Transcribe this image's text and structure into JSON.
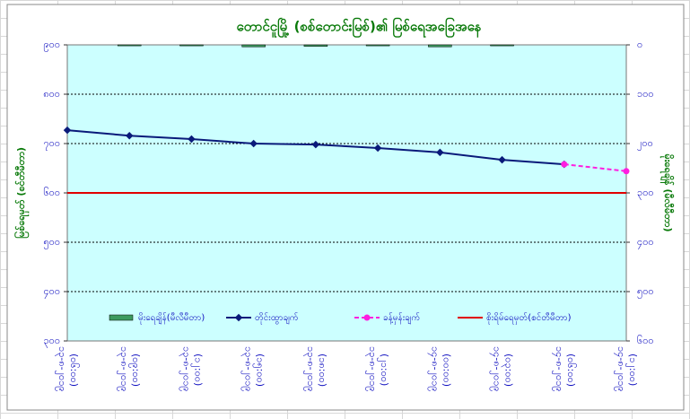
{
  "chart_data": {
    "type": "line",
    "title": "တောင်ငူမြို့ (စစ်တောင်းမြစ်)၏ မြစ်ရေအခြေအနေ",
    "y_label": "မြစ်ရေမှတ် (စင်တီမီတာ)",
    "y2_label": "မိုးရေချိန် (မီလီမီတာ)",
    "categories": [
      "၁၃-၈-၂၀၁၉",
      "၁၃-၈-၂၀၁၉",
      "၁၃-၈-၂၀၁၉",
      "၁၃-၈-၂၀၁၉",
      "၁၃-၈-၂၀၁၉",
      "၁၃-၈-၂၀၁၉",
      "၁၄-၈-၂၀၁၉",
      "၁၄-၈-၂၀၁၉",
      "၁၄-၈-၂၀၁၉",
      "၁၄-၈-၂၀၁၉"
    ],
    "times": [
      "(၀၆:၀၀)",
      "(၀၉:၀၀)",
      "(၁၂:၀၀)",
      "(၁၅:၀၀)",
      "(၁၈:၀၀)",
      "(၂၁:၀၀)",
      "(၀၀:၀၀)",
      "(၀၃:၀၀)",
      "(၀၆:၀၀)",
      "(၁၂:၀၀)"
    ],
    "series": [
      {
        "name": "မိုးရေချိန်(မီလီမီတာ)",
        "kind": "bar",
        "axis": "y2",
        "color": "#3c9a5f",
        "values": [
          null,
          2,
          2,
          4,
          3,
          2,
          4,
          2,
          null,
          null
        ]
      },
      {
        "name": "တိုင်းထွာချက်",
        "kind": "line",
        "color": "#0a1a7a",
        "values": [
          727,
          716,
          709,
          700,
          698,
          691,
          682,
          667,
          658,
          null
        ]
      },
      {
        "name": "ခန့်မှန်းချက်",
        "kind": "dashed",
        "color": "#ff1ee0",
        "values": [
          null,
          null,
          null,
          null,
          null,
          null,
          null,
          null,
          658,
          644
        ]
      },
      {
        "name": "စိုးရိမ်ရေမှတ်(စင်တီမီတာ)",
        "kind": "hline",
        "color": "#e00000",
        "value": 600
      }
    ],
    "ylim": [
      300,
      900
    ],
    "yticks": [
      {
        "value": 300,
        "label": "၃၀၀"
      },
      {
        "value": 400,
        "label": "၄၀၀"
      },
      {
        "value": 500,
        "label": "၅၀၀"
      },
      {
        "value": 600,
        "label": "၆၀၀"
      },
      {
        "value": 700,
        "label": "၇၀၀"
      },
      {
        "value": 800,
        "label": "၈၀၀"
      },
      {
        "value": 900,
        "label": "၉၀၀"
      }
    ],
    "y2lim": [
      0,
      600
    ],
    "y2_reversed": true,
    "y2ticks": [
      {
        "value": 0,
        "label": "၀"
      },
      {
        "value": 100,
        "label": "၁၀၀"
      },
      {
        "value": 200,
        "label": "၂၀၀"
      },
      {
        "value": 300,
        "label": "၃၀၀"
      },
      {
        "value": 400,
        "label": "၄၀၀"
      },
      {
        "value": 500,
        "label": "၅၀၀"
      },
      {
        "value": 600,
        "label": "၆၀၀"
      }
    ],
    "grid": true
  }
}
